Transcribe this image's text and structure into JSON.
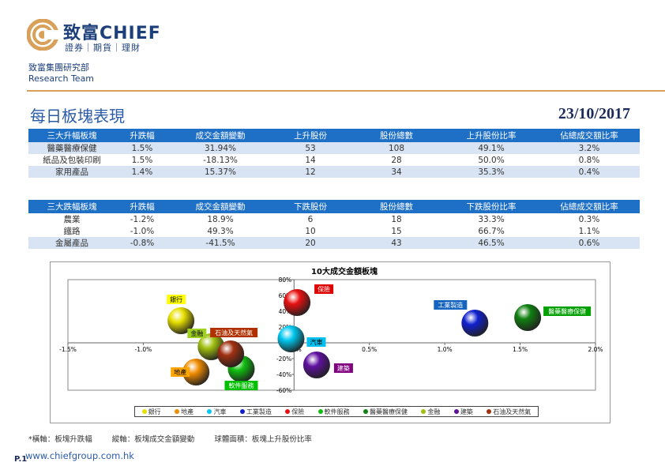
{
  "brand": {
    "name_cn": "致富CHIEF",
    "tagline": "證券｜期貨｜理財",
    "colors": {
      "primary": "#1d3f7a",
      "accent": "#d9a05a"
    }
  },
  "department": {
    "line1": "致富集團研究部",
    "line2": "Research Team"
  },
  "page": {
    "title": "每日板塊表現",
    "date": "23/10/2017"
  },
  "top_table": {
    "headers": [
      "三大升幅板塊",
      "升跌幅",
      "成交金額變動",
      "上升股份",
      "股份總數",
      "上升股份比率",
      "佔總成交額比率"
    ],
    "rows": [
      [
        "醫藥醫療保健",
        "1.5%",
        "31.94%",
        "53",
        "108",
        "49.1%",
        "3.2%"
      ],
      [
        "紙品及包裝印刷",
        "1.5%",
        "-18.13%",
        "14",
        "28",
        "50.0%",
        "0.8%"
      ],
      [
        "家用產品",
        "1.4%",
        "15.37%",
        "12",
        "34",
        "35.3%",
        "0.4%"
      ]
    ]
  },
  "bottom_table": {
    "headers": [
      "三大跌幅板塊",
      "升跌幅",
      "成交金額變動",
      "下跌股份",
      "股份總數",
      "下跌股份比率",
      "佔總成交額比率"
    ],
    "rows": [
      [
        "農業",
        "-1.2%",
        "18.9%",
        "6",
        "18",
        "33.3%",
        "0.3%"
      ],
      [
        "鐵路",
        "-1.0%",
        "49.3%",
        "10",
        "15",
        "66.7%",
        "1.1%"
      ],
      [
        "金屬產品",
        "-0.8%",
        "-41.5%",
        "20",
        "43",
        "46.5%",
        "0.6%"
      ]
    ]
  },
  "chart_data": {
    "type": "scatter",
    "title": "10大成交金額板塊",
    "x_ticks": [
      "-1.5%",
      "-1.0%",
      "-0.5%",
      "0.0%",
      "0.5%",
      "1.0%",
      "1.5%",
      "2.0%"
    ],
    "y_ticks": [
      "80%",
      "60%",
      "40%",
      "20%",
      "0%",
      "-20%",
      "-40%",
      "-60%"
    ],
    "xlim": [
      -1.5,
      2.0
    ],
    "ylim": [
      -60,
      80
    ],
    "series": [
      {
        "name": "銀行",
        "x": -0.75,
        "y": 28,
        "color": "#e8e000"
      },
      {
        "name": "地產",
        "x": -0.65,
        "y": -37,
        "color": "#f08c00"
      },
      {
        "name": "汽車",
        "x": -0.02,
        "y": 5,
        "color": "#00c8f0"
      },
      {
        "name": "工業製造",
        "x": 1.2,
        "y": 25,
        "color": "#1020d0"
      },
      {
        "name": "保險",
        "x": 0.02,
        "y": 51,
        "color": "#e81010"
      },
      {
        "name": "軟件服務",
        "x": -0.35,
        "y": -33,
        "color": "#10c010"
      },
      {
        "name": "醫藥醫療保健",
        "x": 1.55,
        "y": 32,
        "color": "#108010"
      },
      {
        "name": "金融",
        "x": -0.55,
        "y": -5,
        "color": "#a0c010"
      },
      {
        "name": "建築",
        "x": 0.15,
        "y": -28,
        "color": "#6010a0"
      },
      {
        "name": "石油及天然氣",
        "x": -0.42,
        "y": -14,
        "color": "#a03010"
      }
    ],
    "label_colors": {
      "銀行": "#ffff00",
      "地產": "#ffa500",
      "汽車": "#00c0f0",
      "工業製造": "#1565c0",
      "保險": "#e00000",
      "軟件服務": "#00c000",
      "醫藥醫療保健": "#00a000",
      "金融": "#a0d020",
      "建築": "#800080",
      "石油及天然氣": "#b03000"
    }
  },
  "footnote": {
    "x_axis": "*橫軸：板塊升跌幅",
    "y_axis": "縱軸：板塊成交金額變動",
    "bubble": "球體面積：板塊上升股份比率"
  },
  "footer": {
    "page": "P.1",
    "url": "www.chiefgroup.com.hk"
  }
}
